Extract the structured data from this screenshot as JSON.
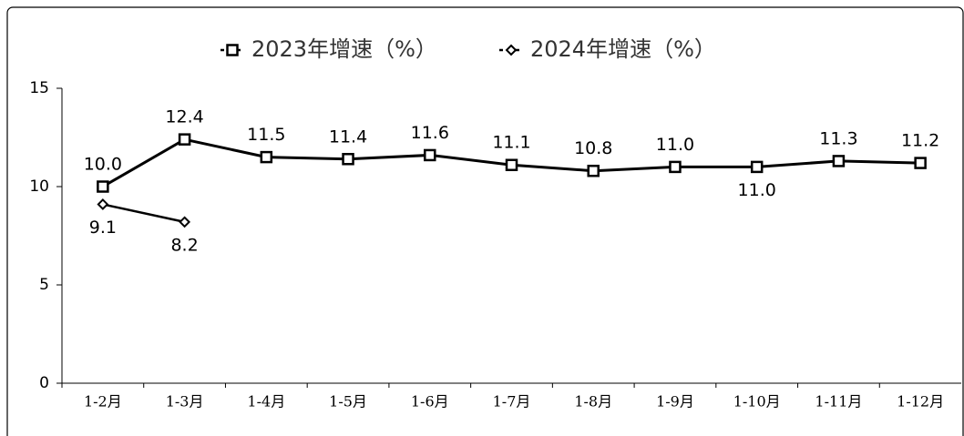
{
  "chart_data": {
    "type": "line",
    "categories": [
      "1-2月",
      "1-3月",
      "1-4月",
      "1-5月",
      "1-6月",
      "1-7月",
      "1-8月",
      "1-9月",
      "1-10月",
      "1-11月",
      "1-12月"
    ],
    "series": [
      {
        "name": "2023年增速（%）",
        "color": "#000000",
        "marker": "square",
        "values": [
          10.0,
          12.4,
          11.5,
          11.4,
          11.6,
          11.1,
          10.8,
          11.0,
          11.0,
          11.3,
          11.2
        ],
        "value_labels": [
          "10.0",
          "12.4",
          "11.5",
          "11.4",
          "11.6",
          "11.1",
          "10.8",
          "11.0",
          "11.0",
          "11.3",
          "11.2"
        ]
      },
      {
        "name": "2024年增速（%）",
        "color": "#000000",
        "marker": "diamond",
        "values": [
          9.1,
          8.2,
          null,
          null,
          null,
          null,
          null,
          null,
          null,
          null,
          null
        ],
        "value_labels": [
          "9.1",
          "8.2",
          null,
          null,
          null,
          null,
          null,
          null,
          null,
          null,
          null
        ]
      }
    ],
    "ylim": [
      0,
      15
    ],
    "yticks": [
      0,
      5,
      10,
      15
    ],
    "grid": false,
    "legend": "top"
  }
}
